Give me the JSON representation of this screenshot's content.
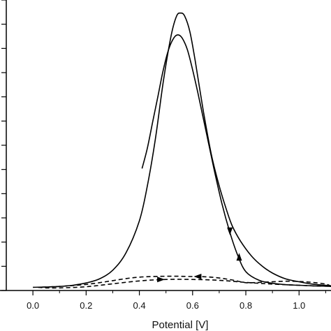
{
  "chart_data": {
    "type": "line",
    "title": "",
    "xlabel": "Potential [V]",
    "ylabel": "",
    "xlim": [
      -0.1,
      1.12
    ],
    "ylim": [
      0,
      1.0
    ],
    "x_ticks": [
      0.0,
      0.2,
      0.4,
      0.6,
      0.8,
      1.0
    ],
    "x_tick_labels": [
      "0.0",
      "0.2",
      "0.4",
      "0.6",
      "0.8",
      "1.0"
    ],
    "y_ticks": [
      0.0,
      0.0833,
      0.1667,
      0.25,
      0.3333,
      0.4167,
      0.5,
      0.5833,
      0.6667,
      0.75,
      0.8333,
      0.9167,
      1.0
    ],
    "grid": false,
    "legend": "none",
    "series": [
      {
        "style": "solid",
        "color": "#000000",
        "x": [
          0.0,
          0.05,
          0.1,
          0.15,
          0.2,
          0.25,
          0.3,
          0.35,
          0.4,
          0.43,
          0.46,
          0.49,
          0.52,
          0.54,
          0.555,
          0.57,
          0.59,
          0.61,
          0.64,
          0.67,
          0.7,
          0.73,
          0.75,
          0.78,
          0.82,
          0.86,
          0.9,
          0.95,
          1.0,
          1.05,
          1.1,
          1.12
        ],
        "y": [
          0.011,
          0.012,
          0.014,
          0.018,
          0.026,
          0.04,
          0.07,
          0.13,
          0.24,
          0.36,
          0.52,
          0.72,
          0.88,
          0.945,
          0.955,
          0.945,
          0.89,
          0.79,
          0.62,
          0.47,
          0.36,
          0.27,
          0.22,
          0.17,
          0.12,
          0.085,
          0.06,
          0.04,
          0.03,
          0.022,
          0.018,
          0.016
        ]
      },
      {
        "style": "solid",
        "color": "#000000",
        "x": [
          1.12,
          1.1,
          1.05,
          1.0,
          0.95,
          0.9,
          0.85,
          0.8,
          0.77,
          0.74,
          0.71,
          0.68,
          0.65,
          0.62,
          0.6,
          0.58,
          0.56,
          0.545,
          0.53,
          0.51,
          0.49,
          0.47,
          0.45,
          0.43,
          0.41
        ],
        "y": [
          0.014,
          0.015,
          0.016,
          0.018,
          0.02,
          0.025,
          0.035,
          0.065,
          0.12,
          0.2,
          0.3,
          0.42,
          0.55,
          0.68,
          0.76,
          0.83,
          0.87,
          0.88,
          0.87,
          0.83,
          0.76,
          0.67,
          0.58,
          0.49,
          0.42
        ]
      },
      {
        "style": "dashed",
        "color": "#000000",
        "x": [
          0.02,
          0.05,
          0.1,
          0.2,
          0.3,
          0.4,
          0.5,
          0.6,
          0.7,
          0.8,
          0.9,
          1.0,
          1.05,
          1.1,
          1.12
        ],
        "y": [
          0.011,
          0.009,
          0.009,
          0.013,
          0.023,
          0.033,
          0.038,
          0.038,
          0.035,
          0.028,
          0.022,
          0.018,
          0.016,
          0.015,
          0.015
        ]
      },
      {
        "style": "dashed",
        "color": "#000000",
        "x": [
          1.12,
          1.1,
          1.05,
          1.0,
          0.95,
          0.9,
          0.85,
          0.8,
          0.75,
          0.7,
          0.65,
          0.6,
          0.55,
          0.5,
          0.45,
          0.4,
          0.35,
          0.3,
          0.25,
          0.2,
          0.15,
          0.1,
          0.05,
          0.02
        ],
        "y": [
          0.015,
          0.022,
          0.028,
          0.031,
          0.032,
          0.03,
          0.028,
          0.027,
          0.036,
          0.043,
          0.047,
          0.048,
          0.049,
          0.049,
          0.048,
          0.046,
          0.041,
          0.034,
          0.027,
          0.021,
          0.017,
          0.014,
          0.012,
          0.011
        ]
      }
    ],
    "direction_markers": [
      {
        "x": 0.74,
        "y": 0.205,
        "direction": "down"
      },
      {
        "x": 0.775,
        "y": 0.115,
        "direction": "up"
      },
      {
        "x": 0.48,
        "y": 0.038,
        "direction": "right"
      },
      {
        "x": 0.62,
        "y": 0.048,
        "direction": "left"
      }
    ]
  }
}
